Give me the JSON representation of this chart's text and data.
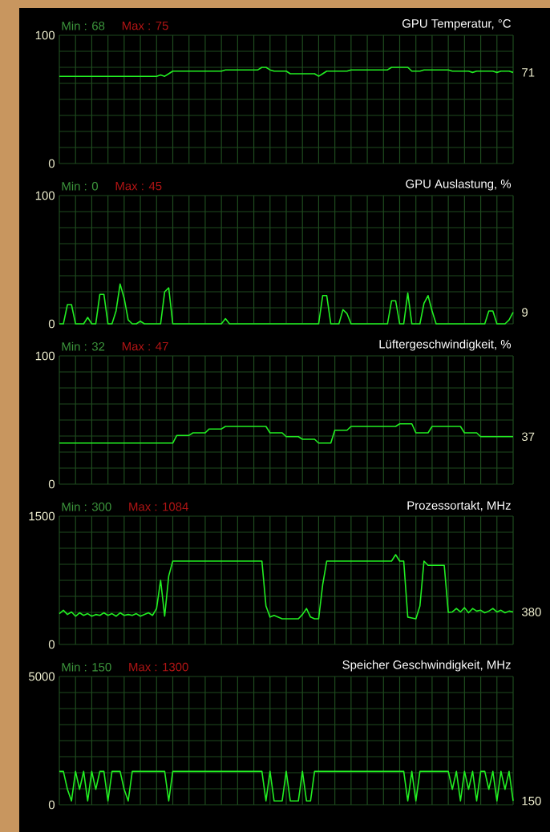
{
  "chart_data": [
    {
      "type": "line",
      "title": "GPU Temperatur, °C",
      "annotations": [
        "Min : 68",
        "Max : 75",
        "71"
      ],
      "color": "#22ee22",
      "categories": [
        null,
        null,
        null,
        null,
        null,
        null,
        null,
        null,
        null,
        null,
        null,
        null,
        null,
        null,
        null,
        null,
        null,
        null,
        null,
        null,
        null,
        null,
        null,
        null,
        null,
        null,
        null,
        null,
        null,
        null,
        null,
        null,
        null,
        null,
        null,
        null,
        null,
        null,
        null,
        null,
        null,
        null,
        null,
        null,
        null,
        null,
        null,
        null,
        null,
        null,
        null,
        null,
        null,
        null,
        null,
        null,
        null,
        null,
        null,
        null,
        null,
        null,
        null,
        null,
        null,
        null,
        null,
        null,
        null,
        null,
        null,
        null,
        null,
        null,
        null,
        null,
        null,
        null,
        null,
        null,
        null,
        null,
        null,
        null,
        null,
        null,
        null,
        null,
        null,
        null,
        null,
        null,
        null,
        null,
        null,
        null,
        null,
        null,
        null,
        null,
        null,
        null,
        null,
        null,
        null,
        null,
        null,
        null,
        null,
        null,
        null,
        null,
        null
      ],
      "values": [
        68,
        68,
        68,
        68,
        68,
        68,
        68,
        68,
        68,
        68,
        68,
        68,
        68,
        68,
        68,
        68,
        68,
        68,
        68,
        68,
        68,
        68,
        68,
        68,
        68,
        69,
        68,
        70,
        72,
        72,
        72,
        72,
        72,
        72,
        72,
        72,
        72,
        72,
        72,
        72,
        72,
        73,
        73,
        73,
        73,
        73,
        73,
        73,
        73,
        73,
        75,
        75,
        73,
        72,
        72,
        72,
        72,
        70,
        70,
        70,
        70,
        70,
        70,
        70,
        68,
        70,
        72,
        72,
        72,
        72,
        72,
        72,
        73,
        73,
        73,
        73,
        73,
        73,
        73,
        73,
        73,
        73,
        75,
        75,
        75,
        75,
        75,
        72,
        72,
        72,
        73,
        73,
        73,
        73,
        73,
        73,
        73,
        72,
        72,
        72,
        72,
        72,
        71,
        72,
        72,
        72,
        72,
        72,
        71,
        72,
        72,
        72,
        71
      ],
      "ylim": [
        0,
        100
      ],
      "yticks": [
        0,
        {
          "value": 12.5,
          "label": null
        },
        {
          "value": 25,
          "label": null
        },
        {
          "value": 37.5,
          "label": null
        },
        {
          "value": 50,
          "label": null
        },
        {
          "value": 62.5,
          "label": null
        },
        {
          "value": 75,
          "label": null
        },
        {
          "value": 87.5,
          "label": null
        },
        100
      ],
      "grid": true,
      "tick_labels": "y"
    },
    {
      "type": "line",
      "title": "GPU Auslastung, %",
      "annotations": [
        "Min : 0",
        "Max : 45",
        "9"
      ],
      "color": "#22ee22",
      "categories": [
        null,
        null,
        null,
        null,
        null,
        null,
        null,
        null,
        null,
        null,
        null,
        null,
        null,
        null,
        null,
        null,
        null,
        null,
        null,
        null,
        null,
        null,
        null,
        null,
        null,
        null,
        null,
        null,
        null,
        null,
        null,
        null,
        null,
        null,
        null,
        null,
        null,
        null,
        null,
        null,
        null,
        null,
        null,
        null,
        null,
        null,
        null,
        null,
        null,
        null,
        null,
        null,
        null,
        null,
        null,
        null,
        null,
        null,
        null,
        null,
        null,
        null,
        null,
        null,
        null,
        null,
        null,
        null,
        null,
        null,
        null,
        null,
        null,
        null,
        null,
        null,
        null,
        null,
        null,
        null,
        null,
        null,
        null,
        null,
        null,
        null,
        null,
        null,
        null,
        null,
        null,
        null,
        null,
        null,
        null,
        null,
        null,
        null,
        null,
        null,
        null,
        null,
        null,
        null,
        null,
        null,
        null,
        null,
        null,
        null,
        null,
        null,
        null
      ],
      "values": [
        0,
        0,
        15,
        15,
        0,
        0,
        0,
        5,
        0,
        0,
        23,
        23,
        0,
        0,
        10,
        31,
        20,
        3,
        0,
        0,
        2,
        0,
        0,
        0,
        0,
        0,
        25,
        28,
        0,
        0,
        0,
        0,
        0,
        0,
        0,
        0,
        0,
        0,
        0,
        0,
        0,
        4,
        0,
        0,
        0,
        0,
        0,
        0,
        0,
        0,
        0,
        0,
        0,
        0,
        0,
        0,
        0,
        0,
        0,
        0,
        0,
        0,
        0,
        0,
        0,
        22,
        22,
        0,
        0,
        0,
        11,
        8,
        0,
        0,
        0,
        0,
        0,
        0,
        0,
        0,
        0,
        0,
        18,
        18,
        0,
        0,
        24,
        0,
        0,
        0,
        16,
        22,
        10,
        0,
        0,
        0,
        0,
        0,
        0,
        0,
        0,
        0,
        0,
        0,
        0,
        0,
        10,
        10,
        0,
        0,
        0,
        3,
        9
      ],
      "ylim": [
        0,
        100
      ],
      "yticks": [
        0,
        {
          "value": 12.5,
          "label": null
        },
        {
          "value": 25,
          "label": null
        },
        {
          "value": 37.5,
          "label": null
        },
        {
          "value": 50,
          "label": null
        },
        {
          "value": 62.5,
          "label": null
        },
        {
          "value": 75,
          "label": null
        },
        {
          "value": 87.5,
          "label": null
        },
        100
      ],
      "grid": true,
      "tick_labels": "y"
    },
    {
      "type": "line",
      "title": "Lüftergeschwindigkeit, %",
      "annotations": [
        "Min : 32",
        "Max : 47",
        "37"
      ],
      "color": "#22ee22",
      "categories": [
        null,
        null,
        null,
        null,
        null,
        null,
        null,
        null,
        null,
        null,
        null,
        null,
        null,
        null,
        null,
        null,
        null,
        null,
        null,
        null,
        null,
        null,
        null,
        null,
        null,
        null,
        null,
        null,
        null,
        null,
        null,
        null,
        null,
        null,
        null,
        null,
        null,
        null,
        null,
        null,
        null,
        null,
        null,
        null,
        null,
        null,
        null,
        null,
        null,
        null,
        null,
        null,
        null,
        null,
        null,
        null,
        null,
        null,
        null,
        null,
        null,
        null,
        null,
        null,
        null,
        null,
        null,
        null,
        null,
        null,
        null,
        null,
        null,
        null,
        null,
        null,
        null,
        null,
        null,
        null,
        null,
        null,
        null,
        null,
        null,
        null,
        null,
        null,
        null,
        null,
        null,
        null,
        null,
        null,
        null,
        null,
        null,
        null,
        null,
        null,
        null,
        null,
        null,
        null,
        null,
        null,
        null,
        null,
        null,
        null,
        null,
        null,
        null
      ],
      "values": [
        32,
        32,
        32,
        32,
        32,
        32,
        32,
        32,
        32,
        32,
        32,
        32,
        32,
        32,
        32,
        32,
        32,
        32,
        32,
        32,
        32,
        32,
        32,
        32,
        32,
        32,
        32,
        32,
        32,
        38,
        38,
        38,
        38,
        40,
        40,
        40,
        40,
        43,
        43,
        43,
        43,
        45,
        45,
        45,
        45,
        45,
        45,
        45,
        45,
        45,
        45,
        45,
        40,
        40,
        40,
        40,
        37,
        37,
        37,
        37,
        35,
        35,
        35,
        35,
        32,
        32,
        32,
        32,
        42,
        42,
        42,
        42,
        45,
        45,
        45,
        45,
        45,
        45,
        45,
        45,
        45,
        45,
        45,
        45,
        47,
        47,
        47,
        47,
        40,
        40,
        40,
        40,
        45,
        45,
        45,
        45,
        45,
        45,
        45,
        45,
        40,
        40,
        40,
        40,
        37,
        37,
        37,
        37,
        37,
        37,
        37,
        37,
        37
      ],
      "ylim": [
        0,
        100
      ],
      "yticks": [
        0,
        {
          "value": 12.5,
          "label": null
        },
        {
          "value": 25,
          "label": null
        },
        {
          "value": 37.5,
          "label": null
        },
        {
          "value": 50,
          "label": null
        },
        {
          "value": 62.5,
          "label": null
        },
        {
          "value": 75,
          "label": null
        },
        {
          "value": 87.5,
          "label": null
        },
        100
      ],
      "grid": true,
      "tick_labels": "y"
    },
    {
      "type": "line",
      "title": "Prozessortakt, MHz",
      "annotations": [
        "Min : 300",
        "Max : 1084",
        "380"
      ],
      "color": "#22ee22",
      "categories": [
        null,
        null,
        null,
        null,
        null,
        null,
        null,
        null,
        null,
        null,
        null,
        null,
        null,
        null,
        null,
        null,
        null,
        null,
        null,
        null,
        null,
        null,
        null,
        null,
        null,
        null,
        null,
        null,
        null,
        null,
        null,
        null,
        null,
        null,
        null,
        null,
        null,
        null,
        null,
        null,
        null,
        null,
        null,
        null,
        null,
        null,
        null,
        null,
        null,
        null,
        null,
        null,
        null,
        null,
        null,
        null,
        null,
        null,
        null,
        null,
        null,
        null,
        null,
        null,
        null,
        null,
        null,
        null,
        null,
        null,
        null,
        null,
        null,
        null,
        null,
        null,
        null,
        null,
        null,
        null,
        null,
        null,
        null,
        null,
        null,
        null,
        null,
        null,
        null,
        null,
        null,
        null,
        null,
        null,
        null,
        null,
        null,
        null,
        null,
        null,
        null,
        null,
        null,
        null,
        null,
        null,
        null,
        null,
        null,
        null,
        null,
        null,
        null
      ],
      "values": [
        360,
        400,
        350,
        380,
        330,
        370,
        340,
        360,
        330,
        350,
        340,
        370,
        340,
        360,
        330,
        370,
        340,
        350,
        340,
        360,
        330,
        350,
        370,
        340,
        420,
        750,
        330,
        800,
        975,
        975,
        975,
        975,
        975,
        975,
        975,
        975,
        975,
        975,
        975,
        975,
        975,
        975,
        975,
        975,
        975,
        975,
        975,
        975,
        975,
        975,
        975,
        450,
        320,
        340,
        320,
        300,
        300,
        300,
        300,
        300,
        350,
        420,
        320,
        300,
        300,
        700,
        975,
        975,
        975,
        975,
        975,
        975,
        975,
        975,
        975,
        975,
        975,
        975,
        975,
        975,
        975,
        975,
        975,
        1050,
        975,
        975,
        320,
        310,
        300,
        450,
        975,
        925,
        925,
        925,
        925,
        925,
        375,
        380,
        420,
        380,
        430,
        370,
        420,
        390,
        400,
        370,
        390,
        420,
        380,
        400,
        370,
        390,
        380
      ],
      "ylim": [
        0,
        1500
      ],
      "yticks": [
        0,
        {
          "value": 187.5,
          "label": null
        },
        {
          "value": 375,
          "label": null
        },
        {
          "value": 562.5,
          "label": null
        },
        {
          "value": 750,
          "label": null
        },
        {
          "value": 937.5,
          "label": null
        },
        {
          "value": 1125,
          "label": null
        },
        {
          "value": 1312.5,
          "label": null
        },
        1500
      ],
      "grid": true,
      "tick_labels": "y"
    },
    {
      "type": "line",
      "title": "Speicher Geschwindigkeit, MHz",
      "annotations": [
        "Min : 150",
        "Max : 1300",
        "150"
      ],
      "color": "#22ee22",
      "categories": [
        null,
        null,
        null,
        null,
        null,
        null,
        null,
        null,
        null,
        null,
        null,
        null,
        null,
        null,
        null,
        null,
        null,
        null,
        null,
        null,
        null,
        null,
        null,
        null,
        null,
        null,
        null,
        null,
        null,
        null,
        null,
        null,
        null,
        null,
        null,
        null,
        null,
        null,
        null,
        null,
        null,
        null,
        null,
        null,
        null,
        null,
        null,
        null,
        null,
        null,
        null,
        null,
        null,
        null,
        null,
        null,
        null,
        null,
        null,
        null,
        null,
        null,
        null,
        null,
        null,
        null,
        null,
        null,
        null,
        null,
        null,
        null,
        null,
        null,
        null,
        null,
        null,
        null,
        null,
        null,
        null,
        null,
        null,
        null,
        null,
        null,
        null,
        null,
        null,
        null,
        null,
        null,
        null,
        null,
        null,
        null,
        null,
        null,
        null,
        null,
        null,
        null,
        null,
        null,
        null,
        null,
        null,
        null,
        null,
        null,
        null,
        null,
        null
      ],
      "values": [
        1300,
        1300,
        600,
        150,
        1300,
        600,
        1300,
        150,
        1300,
        600,
        1300,
        1300,
        150,
        1300,
        1300,
        1300,
        600,
        150,
        1300,
        1300,
        1300,
        1300,
        1300,
        1300,
        1300,
        1300,
        1300,
        150,
        1300,
        1300,
        1300,
        1300,
        1300,
        1300,
        1300,
        1300,
        1300,
        1300,
        1300,
        1300,
        1300,
        1300,
        1300,
        1300,
        1300,
        1300,
        1300,
        1300,
        1300,
        1300,
        1300,
        150,
        1300,
        150,
        150,
        150,
        1300,
        150,
        150,
        150,
        1300,
        150,
        150,
        1300,
        1300,
        1300,
        1300,
        1300,
        1300,
        1300,
        1300,
        1300,
        1300,
        1300,
        1300,
        1300,
        1300,
        1300,
        1300,
        1300,
        1300,
        1300,
        1300,
        1300,
        1300,
        1300,
        150,
        1300,
        150,
        1300,
        1300,
        1300,
        1300,
        1300,
        1300,
        1300,
        1300,
        600,
        1300,
        150,
        1300,
        600,
        1300,
        150,
        1300,
        1300,
        600,
        1300,
        150,
        1300,
        600,
        1300,
        150
      ],
      "ylim": [
        0,
        5000
      ],
      "yticks": [
        0,
        {
          "value": 625,
          "label": null
        },
        {
          "value": 1250,
          "label": null
        },
        {
          "value": 1875,
          "label": null
        },
        {
          "value": 2500,
          "label": null
        },
        {
          "value": 3125,
          "label": null
        },
        {
          "value": 3750,
          "label": null
        },
        {
          "value": 4375,
          "label": null
        },
        5000
      ],
      "grid": true,
      "tick_labels": "y"
    }
  ]
}
